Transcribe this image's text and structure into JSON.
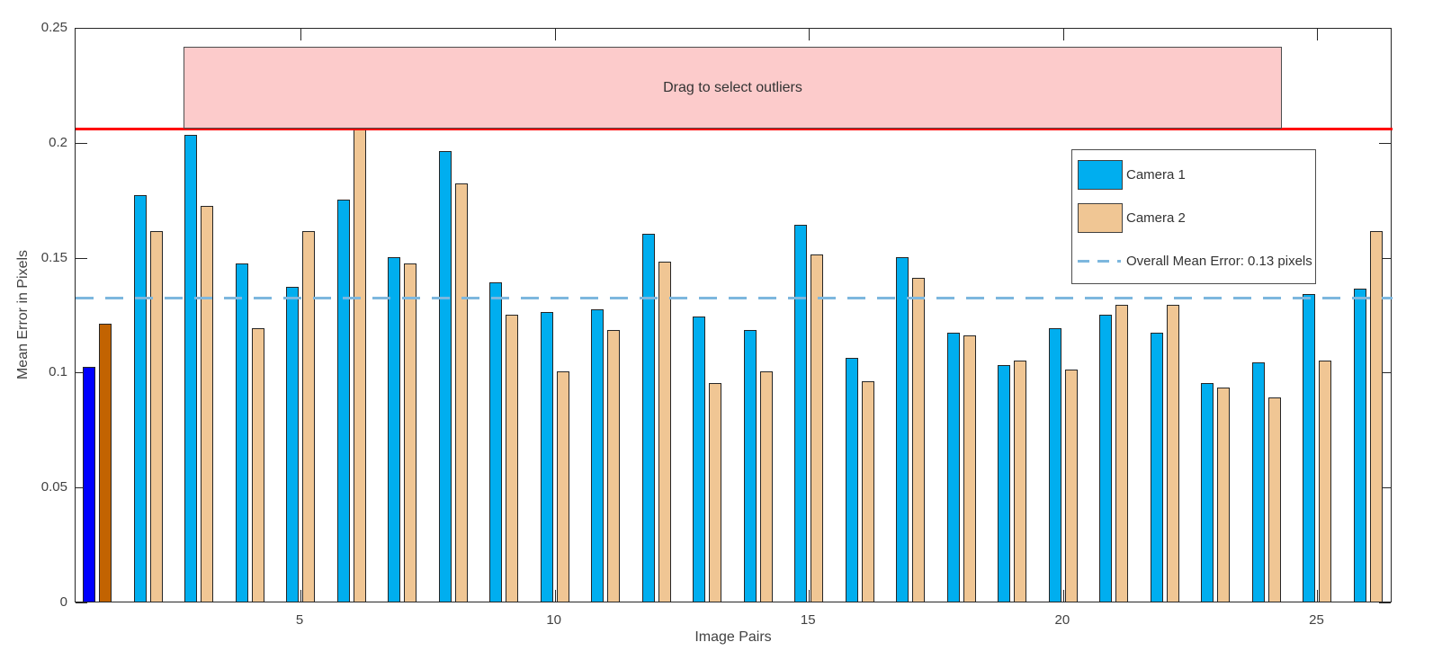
{
  "chart_data": {
    "type": "bar",
    "title": "",
    "xlabel": "Image Pairs",
    "ylabel": "Mean Error in Pixels",
    "ylim": [
      0,
      0.25
    ],
    "yticks": [
      0,
      0.05,
      0.1,
      0.15,
      0.2,
      0.25
    ],
    "ytick_labels": [
      "0",
      "0.05",
      "0.1",
      "0.15",
      "0.2",
      "0.25"
    ],
    "xticks": [
      5,
      10,
      15,
      20,
      25
    ],
    "grid": "off",
    "legend_position": "upper right",
    "categories": [
      1,
      2,
      3,
      4,
      5,
      6,
      7,
      8,
      9,
      10,
      11,
      12,
      13,
      14,
      15,
      16,
      17,
      18,
      19,
      20,
      21,
      22,
      23,
      24,
      25,
      26
    ],
    "series": [
      {
        "name": "Camera 1",
        "color": "#00aeef",
        "selected_color": "#0000fe",
        "values": [
          0.102,
          0.177,
          0.203,
          0.147,
          0.137,
          0.175,
          0.15,
          0.196,
          0.139,
          0.126,
          0.127,
          0.16,
          0.124,
          0.118,
          0.164,
          0.106,
          0.15,
          0.117,
          0.103,
          0.119,
          0.125,
          0.117,
          0.095,
          0.104,
          0.134,
          0.136
        ]
      },
      {
        "name": "Camera 2",
        "color": "#f0c694",
        "selected_color": "#c26301",
        "values": [
          0.121,
          0.161,
          0.172,
          0.119,
          0.161,
          0.207,
          0.147,
          0.182,
          0.125,
          0.1,
          0.118,
          0.148,
          0.095,
          0.1,
          0.151,
          0.096,
          0.141,
          0.116,
          0.105,
          0.101,
          0.129,
          0.129,
          0.093,
          0.089,
          0.105,
          0.161
        ]
      }
    ],
    "selected_pairs": [
      1
    ],
    "mean_line": {
      "value": 0.133,
      "label": "Overall Mean Error: 0.13 pixels",
      "color": "#7db7de",
      "style": "dashed"
    },
    "outlier_threshold_line": {
      "value": 0.2065,
      "color": "#ff0000"
    },
    "selection_region": {
      "label": "Drag to select outliers",
      "fill": "#fccbcb",
      "pair_range": [
        2.7,
        24.3
      ],
      "y_top_value": 0.242
    }
  },
  "legend": {
    "camera1_label": "Camera 1",
    "camera2_label": "Camera 2",
    "mean_label": "Overall Mean Error: 0.13 pixels"
  }
}
